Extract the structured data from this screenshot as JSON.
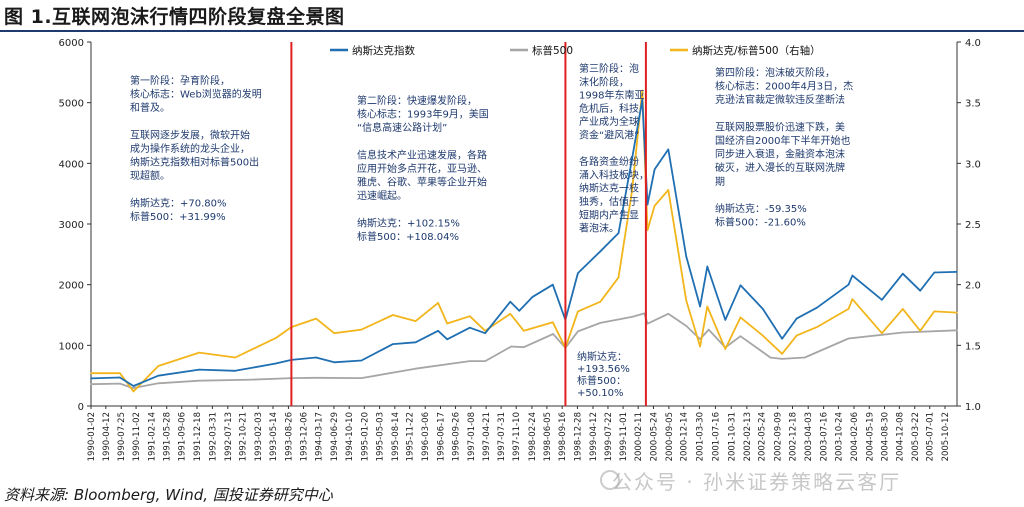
{
  "figure_title": "图 1.互联网泡沫行情四阶段复盘全景图",
  "source_text": "资料来源:  Bloomberg,   Wind,  国投证券研究中心",
  "watermark_text": "公众号 · 孙米证券策略云客厅",
  "colors": {
    "nasdaq": "#1f6fb2",
    "sp500": "#a6a6a6",
    "ratio": "#f2b51b",
    "divider": "#e02020",
    "note": "#1f3a6e"
  },
  "stage_notes": [
    [
      "第一阶段：孕育阶段，",
      "核心标志：Web浏览器的发明",
      "和普及。",
      "",
      "互联网逐步发展，微软开始",
      "成为操作系统的龙头企业，",
      "纳斯达克指数相对标普500出",
      "现超额。",
      "",
      "纳斯达克：+70.80%",
      "标普500：+31.99%"
    ],
    [
      "第二阶段：快速爆发阶段，",
      "核心标志：1993年9月，美国",
      "“信息高速公路计划”",
      "",
      "信息技术产业迅速发展，各路",
      "应用开始多点开花，亚马逊、",
      "雅虎、谷歌、苹果等企业开始",
      "迅速崛起。",
      "",
      "纳斯达克：+102.15%",
      "标普500：+108.04%"
    ],
    [
      "第三阶段：泡",
      "沫化阶段，",
      "1998年东南亚",
      "危机后，科技",
      "产业成为全球",
      "资金“避风港”",
      "",
      "各路资金纷纷",
      "涌入科技板块，",
      "纳斯达克一枝",
      "独秀，估值于",
      "短期内产生显",
      "著泡沫。"
    ],
    [
      "纳斯达克：",
      "+193.56%",
      "标普500：",
      "+50.10%"
    ],
    [
      "第四阶段：泡沫破灭阶段，",
      "核心标志：2000年4月3日，杰",
      "克逊法官裁定微软违反垄断法",
      "",
      "互联网股票股价迅速下跌，美",
      "国经济自2000年下半年开始也",
      "同步进入衰退，金融资本泡沫",
      "破灭，进入漫长的互联网洗牌",
      "期",
      "",
      "纳斯达克：-59.35%",
      "标普500：-21.60%"
    ]
  ],
  "chart_data": {
    "type": "line",
    "legend_position": "top",
    "grid": false,
    "x_start": "1990-01-02",
    "x_end": "2006-01-01",
    "x_tick_labels": [
      "1990-01-02",
      "1990-04-12",
      "1990-07-25",
      "1990-11-02",
      "1991-02-14",
      "1991-05-28",
      "1991-09-06",
      "1991-12-18",
      "1992-03-31",
      "1992-07-13",
      "1992-10-21",
      "1993-02-03",
      "1993-05-14",
      "1993-08-26",
      "1993-12-06",
      "1994-03-17",
      "1994-06-29",
      "1994-10-10",
      "1995-01-20",
      "1995-05-03",
      "1995-08-14",
      "1995-11-22",
      "1996-03-06",
      "1996-06-17",
      "1996-09-26",
      "1997-01-08",
      "1997-04-21",
      "1997-07-31",
      "1997-11-10",
      "1998-02-24",
      "1998-06-05",
      "1998-09-16",
      "1998-12-28",
      "1999-04-12",
      "1999-07-22",
      "1999-11-01",
      "2000-02-11",
      "2000-05-24",
      "2000-09-05",
      "2000-12-14",
      "2001-03-30",
      "2001-07-16",
      "2001-10-31",
      "2002-02-13",
      "2002-05-24",
      "2002-09-09",
      "2002-12-18",
      "2003-04-03",
      "2003-07-16",
      "2003-10-24",
      "2004-02-06",
      "2004-05-19",
      "2004-08-30",
      "2004-12-08",
      "2005-03-22",
      "2005-07-01",
      "2005-10-12"
    ],
    "y_left": {
      "min": 0,
      "max": 6000,
      "ticks": [
        0,
        1000,
        2000,
        3000,
        4000,
        5000,
        6000
      ]
    },
    "y_right": {
      "min": 1.0,
      "max": 4.0,
      "ticks": [
        "1.0",
        "1.5",
        "2.0",
        "2.5",
        "3.0",
        "3.5",
        "4.0"
      ]
    },
    "dividers": [
      "1993-09-15",
      "1998-10-08",
      "2000-04-03"
    ],
    "series": [
      {
        "name": "纳斯达克指数",
        "axis": "left",
        "points": [
          [
            "1990-01-02",
            455
          ],
          [
            "1990-07-16",
            470
          ],
          [
            "1990-10-16",
            330
          ],
          [
            "1991-04-01",
            500
          ],
          [
            "1992-01-02",
            600
          ],
          [
            "1992-09-01",
            580
          ],
          [
            "1993-06-01",
            700
          ],
          [
            "1993-09-15",
            760
          ],
          [
            "1994-03-01",
            800
          ],
          [
            "1994-07-01",
            720
          ],
          [
            "1995-01-01",
            750
          ],
          [
            "1995-08-01",
            1020
          ],
          [
            "1996-01-01",
            1050
          ],
          [
            "1996-06-01",
            1240
          ],
          [
            "1996-08-01",
            1100
          ],
          [
            "1997-01-01",
            1290
          ],
          [
            "1997-04-15",
            1200
          ],
          [
            "1997-10-01",
            1720
          ],
          [
            "1997-12-01",
            1570
          ],
          [
            "1998-03-01",
            1800
          ],
          [
            "1998-07-15",
            2000
          ],
          [
            "1998-10-08",
            1420
          ],
          [
            "1998-12-31",
            2190
          ],
          [
            "1999-06-01",
            2550
          ],
          [
            "1999-10-01",
            2850
          ],
          [
            "1999-12-31",
            4070
          ],
          [
            "2000-03-10",
            5050
          ],
          [
            "2000-04-14",
            3320
          ],
          [
            "2000-06-01",
            3900
          ],
          [
            "2000-09-01",
            4230
          ],
          [
            "2000-12-31",
            2470
          ],
          [
            "2001-04-04",
            1640
          ],
          [
            "2001-05-22",
            2300
          ],
          [
            "2001-09-21",
            1420
          ],
          [
            "2002-01-01",
            1990
          ],
          [
            "2002-06-01",
            1600
          ],
          [
            "2002-10-09",
            1110
          ],
          [
            "2003-01-15",
            1440
          ],
          [
            "2003-06-01",
            1620
          ],
          [
            "2003-12-31",
            2000
          ],
          [
            "2004-01-26",
            2150
          ],
          [
            "2004-08-12",
            1750
          ],
          [
            "2004-12-31",
            2180
          ],
          [
            "2005-04-28",
            1900
          ],
          [
            "2005-08-01",
            2200
          ],
          [
            "2005-12-31",
            2210
          ]
        ]
      },
      {
        "name": "标普500",
        "axis": "left",
        "points": [
          [
            "1990-01-02",
            359
          ],
          [
            "1990-07-16",
            369
          ],
          [
            "1990-10-11",
            295
          ],
          [
            "1991-04-01",
            375
          ],
          [
            "1992-01-02",
            417
          ],
          [
            "1993-01-01",
            435
          ],
          [
            "1993-09-15",
            460
          ],
          [
            "1994-03-01",
            465
          ],
          [
            "1995-01-01",
            460
          ],
          [
            "1995-12-31",
            615
          ],
          [
            "1996-12-31",
            740
          ],
          [
            "1997-04-15",
            740
          ],
          [
            "1997-10-07",
            980
          ],
          [
            "1997-12-31",
            970
          ],
          [
            "1998-07-17",
            1186
          ],
          [
            "1998-10-08",
            960
          ],
          [
            "1998-12-31",
            1229
          ],
          [
            "1999-06-01",
            1370
          ],
          [
            "1999-12-31",
            1469
          ],
          [
            "2000-03-24",
            1527
          ],
          [
            "2000-04-14",
            1357
          ],
          [
            "2000-09-01",
            1520
          ],
          [
            "2000-12-31",
            1320
          ],
          [
            "2001-04-04",
            1103
          ],
          [
            "2001-06-01",
            1260
          ],
          [
            "2001-09-21",
            965
          ],
          [
            "2002-01-01",
            1150
          ],
          [
            "2002-07-23",
            797
          ],
          [
            "2002-10-09",
            777
          ],
          [
            "2003-03-11",
            800
          ],
          [
            "2003-12-31",
            1112
          ],
          [
            "2004-12-31",
            1212
          ],
          [
            "2005-12-31",
            1248
          ]
        ]
      },
      {
        "name": "纳斯达克/标普500（右轴）",
        "axis": "right",
        "points": [
          [
            "1990-01-02",
            1.27
          ],
          [
            "1990-07-16",
            1.27
          ],
          [
            "1990-10-16",
            1.12
          ],
          [
            "1991-04-01",
            1.33
          ],
          [
            "1992-01-02",
            1.44
          ],
          [
            "1992-09-01",
            1.4
          ],
          [
            "1993-06-01",
            1.56
          ],
          [
            "1993-09-15",
            1.65
          ],
          [
            "1994-03-01",
            1.72
          ],
          [
            "1994-07-01",
            1.6
          ],
          [
            "1995-01-01",
            1.63
          ],
          [
            "1995-08-01",
            1.75
          ],
          [
            "1996-01-01",
            1.7
          ],
          [
            "1996-06-01",
            1.85
          ],
          [
            "1996-08-01",
            1.68
          ],
          [
            "1997-01-01",
            1.74
          ],
          [
            "1997-04-15",
            1.62
          ],
          [
            "1997-10-01",
            1.76
          ],
          [
            "1997-12-31",
            1.62
          ],
          [
            "1998-07-15",
            1.69
          ],
          [
            "1998-10-08",
            1.48
          ],
          [
            "1998-12-31",
            1.78
          ],
          [
            "1999-06-01",
            1.86
          ],
          [
            "1999-10-01",
            2.06
          ],
          [
            "1999-12-31",
            2.77
          ],
          [
            "2000-03-10",
            3.6
          ],
          [
            "2000-04-14",
            2.45
          ],
          [
            "2000-06-01",
            2.65
          ],
          [
            "2000-09-01",
            2.78
          ],
          [
            "2000-12-31",
            1.87
          ],
          [
            "2001-04-04",
            1.49
          ],
          [
            "2001-05-22",
            1.82
          ],
          [
            "2001-09-21",
            1.47
          ],
          [
            "2002-01-01",
            1.73
          ],
          [
            "2002-06-01",
            1.58
          ],
          [
            "2002-10-09",
            1.43
          ],
          [
            "2003-01-15",
            1.58
          ],
          [
            "2003-06-01",
            1.65
          ],
          [
            "2003-12-31",
            1.8
          ],
          [
            "2004-01-26",
            1.88
          ],
          [
            "2004-08-12",
            1.6
          ],
          [
            "2004-12-31",
            1.8
          ],
          [
            "2005-04-28",
            1.62
          ],
          [
            "2005-08-01",
            1.78
          ],
          [
            "2005-12-31",
            1.77
          ]
        ]
      }
    ]
  }
}
